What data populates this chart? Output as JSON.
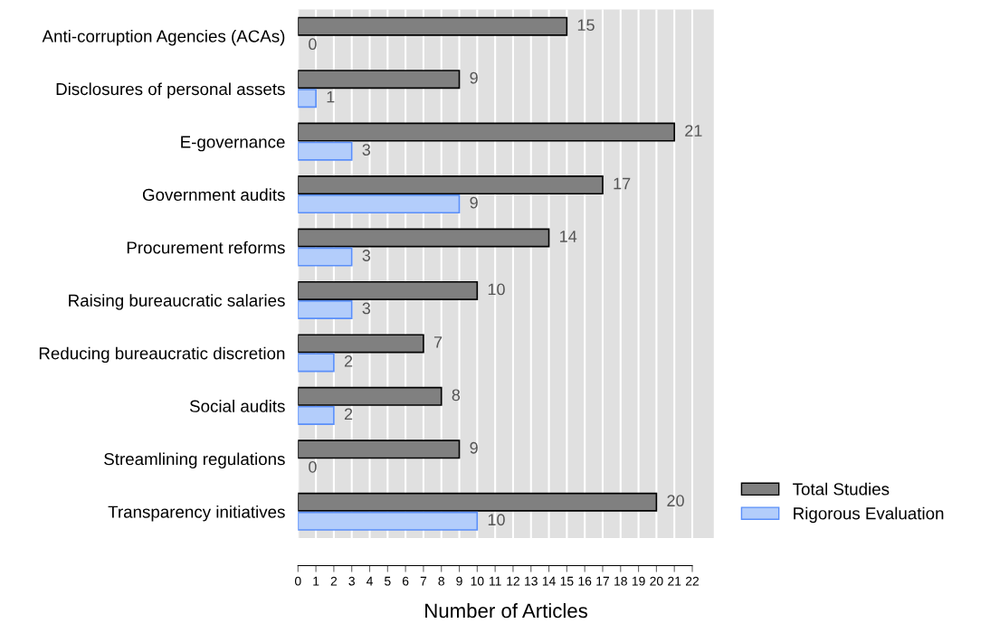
{
  "chart_data": {
    "type": "bar",
    "orientation": "horizontal",
    "xlabel": "Number of Articles",
    "categories": [
      "Anti-corruption Agencies (ACAs)",
      "Disclosures of personal assets",
      "E-governance",
      "Government audits",
      "Procurement reforms",
      "Raising bureaucratic salaries",
      "Reducing bureaucratic discretion",
      "Social audits",
      "Streamlining regulations",
      "Transparency initiatives"
    ],
    "series": [
      {
        "name": "Total Studies",
        "color": "#808080",
        "values": [
          15,
          9,
          21,
          17,
          14,
          10,
          7,
          8,
          9,
          20
        ]
      },
      {
        "name": "Rigorous Evaluation",
        "color": "#b3cdfb",
        "values": [
          0,
          1,
          3,
          9,
          3,
          3,
          2,
          2,
          0,
          10
        ]
      }
    ],
    "xlim": [
      0,
      23.2
    ],
    "xticks": [
      0,
      1,
      2,
      3,
      4,
      5,
      6,
      7,
      8,
      9,
      10,
      11,
      12,
      13,
      14,
      15,
      16,
      17,
      18,
      19,
      20,
      21,
      22
    ],
    "grid": "x",
    "legend": "bottom right",
    "data_labels": true
  }
}
